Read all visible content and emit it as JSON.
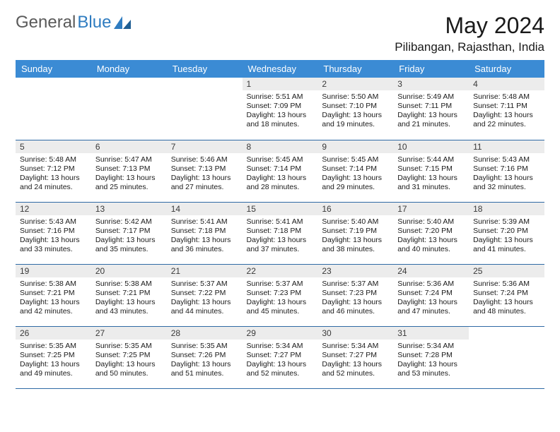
{
  "brand": {
    "part1": "General",
    "part2": "Blue"
  },
  "title": "May 2024",
  "location": "Pilibangan, Rajasthan, India",
  "colors": {
    "header_bg": "#3b8bd4",
    "header_fg": "#ffffff",
    "daynum_bg": "#ececec",
    "row_border": "#2f6aa5",
    "logo_blue": "#2f7cc0"
  },
  "weekdays": [
    "Sunday",
    "Monday",
    "Tuesday",
    "Wednesday",
    "Thursday",
    "Friday",
    "Saturday"
  ],
  "leading_blanks": 3,
  "days": [
    {
      "n": 1,
      "sr": "5:51 AM",
      "ss": "7:09 PM",
      "dl": "13 hours and 18 minutes."
    },
    {
      "n": 2,
      "sr": "5:50 AM",
      "ss": "7:10 PM",
      "dl": "13 hours and 19 minutes."
    },
    {
      "n": 3,
      "sr": "5:49 AM",
      "ss": "7:11 PM",
      "dl": "13 hours and 21 minutes."
    },
    {
      "n": 4,
      "sr": "5:48 AM",
      "ss": "7:11 PM",
      "dl": "13 hours and 22 minutes."
    },
    {
      "n": 5,
      "sr": "5:48 AM",
      "ss": "7:12 PM",
      "dl": "13 hours and 24 minutes."
    },
    {
      "n": 6,
      "sr": "5:47 AM",
      "ss": "7:13 PM",
      "dl": "13 hours and 25 minutes."
    },
    {
      "n": 7,
      "sr": "5:46 AM",
      "ss": "7:13 PM",
      "dl": "13 hours and 27 minutes."
    },
    {
      "n": 8,
      "sr": "5:45 AM",
      "ss": "7:14 PM",
      "dl": "13 hours and 28 minutes."
    },
    {
      "n": 9,
      "sr": "5:45 AM",
      "ss": "7:14 PM",
      "dl": "13 hours and 29 minutes."
    },
    {
      "n": 10,
      "sr": "5:44 AM",
      "ss": "7:15 PM",
      "dl": "13 hours and 31 minutes."
    },
    {
      "n": 11,
      "sr": "5:43 AM",
      "ss": "7:16 PM",
      "dl": "13 hours and 32 minutes."
    },
    {
      "n": 12,
      "sr": "5:43 AM",
      "ss": "7:16 PM",
      "dl": "13 hours and 33 minutes."
    },
    {
      "n": 13,
      "sr": "5:42 AM",
      "ss": "7:17 PM",
      "dl": "13 hours and 35 minutes."
    },
    {
      "n": 14,
      "sr": "5:41 AM",
      "ss": "7:18 PM",
      "dl": "13 hours and 36 minutes."
    },
    {
      "n": 15,
      "sr": "5:41 AM",
      "ss": "7:18 PM",
      "dl": "13 hours and 37 minutes."
    },
    {
      "n": 16,
      "sr": "5:40 AM",
      "ss": "7:19 PM",
      "dl": "13 hours and 38 minutes."
    },
    {
      "n": 17,
      "sr": "5:40 AM",
      "ss": "7:20 PM",
      "dl": "13 hours and 40 minutes."
    },
    {
      "n": 18,
      "sr": "5:39 AM",
      "ss": "7:20 PM",
      "dl": "13 hours and 41 minutes."
    },
    {
      "n": 19,
      "sr": "5:38 AM",
      "ss": "7:21 PM",
      "dl": "13 hours and 42 minutes."
    },
    {
      "n": 20,
      "sr": "5:38 AM",
      "ss": "7:21 PM",
      "dl": "13 hours and 43 minutes."
    },
    {
      "n": 21,
      "sr": "5:37 AM",
      "ss": "7:22 PM",
      "dl": "13 hours and 44 minutes."
    },
    {
      "n": 22,
      "sr": "5:37 AM",
      "ss": "7:23 PM",
      "dl": "13 hours and 45 minutes."
    },
    {
      "n": 23,
      "sr": "5:37 AM",
      "ss": "7:23 PM",
      "dl": "13 hours and 46 minutes."
    },
    {
      "n": 24,
      "sr": "5:36 AM",
      "ss": "7:24 PM",
      "dl": "13 hours and 47 minutes."
    },
    {
      "n": 25,
      "sr": "5:36 AM",
      "ss": "7:24 PM",
      "dl": "13 hours and 48 minutes."
    },
    {
      "n": 26,
      "sr": "5:35 AM",
      "ss": "7:25 PM",
      "dl": "13 hours and 49 minutes."
    },
    {
      "n": 27,
      "sr": "5:35 AM",
      "ss": "7:25 PM",
      "dl": "13 hours and 50 minutes."
    },
    {
      "n": 28,
      "sr": "5:35 AM",
      "ss": "7:26 PM",
      "dl": "13 hours and 51 minutes."
    },
    {
      "n": 29,
      "sr": "5:34 AM",
      "ss": "7:27 PM",
      "dl": "13 hours and 52 minutes."
    },
    {
      "n": 30,
      "sr": "5:34 AM",
      "ss": "7:27 PM",
      "dl": "13 hours and 52 minutes."
    },
    {
      "n": 31,
      "sr": "5:34 AM",
      "ss": "7:28 PM",
      "dl": "13 hours and 53 minutes."
    }
  ],
  "labels": {
    "sunrise": "Sunrise:",
    "sunset": "Sunset:",
    "daylight": "Daylight:"
  }
}
